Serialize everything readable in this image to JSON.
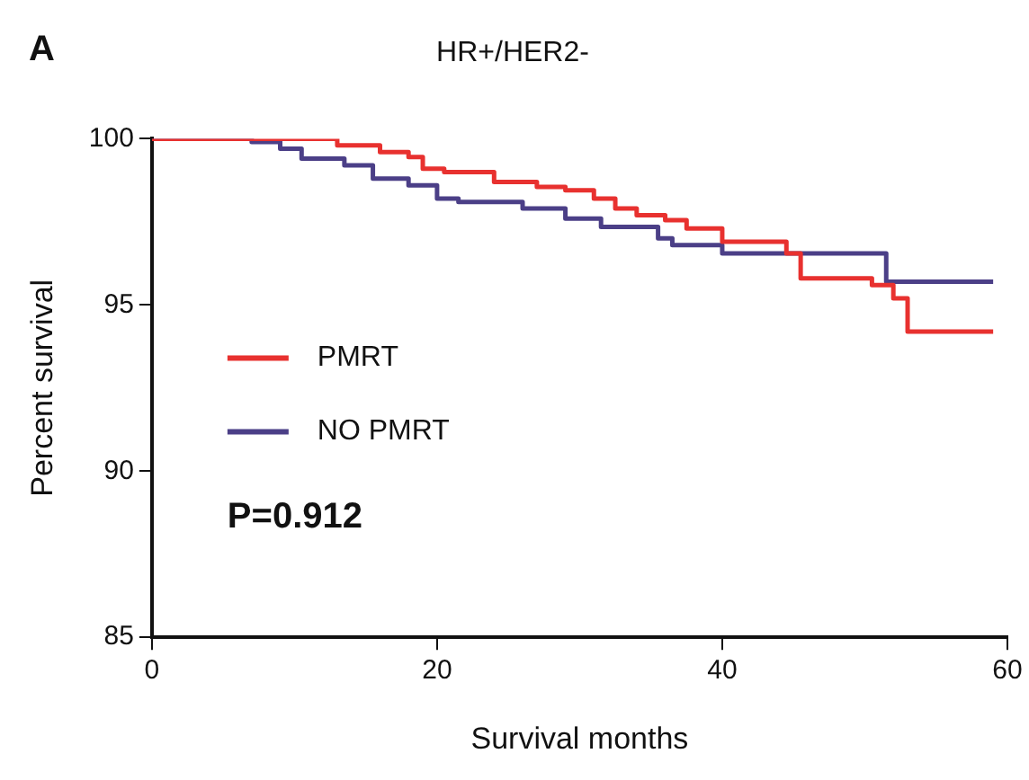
{
  "chart_data": {
    "type": "step",
    "title": "HR+/HER2-",
    "xlabel": "Survival months",
    "ylabel": "Percent survival",
    "annotations": [
      "A",
      "P=0.912"
    ],
    "xlim": [
      0,
      60
    ],
    "xticks": [
      0,
      20,
      40,
      60
    ],
    "ylim": [
      85,
      100
    ],
    "yticks": [
      85,
      90,
      95,
      100
    ],
    "grid": false,
    "legend": "left",
    "marker": "none",
    "line_style": "solid",
    "series": [
      {
        "name": "PMRT",
        "color": "#e8312f",
        "x": [
          0,
          13,
          16,
          18,
          19,
          20.5,
          24,
          27,
          29,
          31,
          32.5,
          34,
          36,
          37.5,
          40,
          44.5,
          45.5,
          50.5,
          52,
          53,
          59
        ],
        "values": [
          100,
          99.8,
          99.6,
          99.45,
          99.1,
          99,
          98.7,
          98.55,
          98.45,
          98.2,
          97.9,
          97.7,
          97.55,
          97.3,
          96.9,
          96.55,
          95.8,
          95.6,
          95.2,
          94.2,
          94.2
        ]
      },
      {
        "name": "NO PMRT",
        "color": "#4b3f87",
        "x": [
          0,
          7,
          9,
          10.5,
          13.5,
          15.5,
          18,
          20,
          21.5,
          26,
          29,
          31.5,
          35.5,
          36.5,
          40,
          51.5,
          59
        ],
        "values": [
          100,
          99.9,
          99.7,
          99.4,
          99.2,
          98.8,
          98.6,
          98.2,
          98.1,
          97.9,
          97.6,
          97.35,
          97,
          96.8,
          96.55,
          95.7,
          95.7
        ]
      }
    ]
  }
}
